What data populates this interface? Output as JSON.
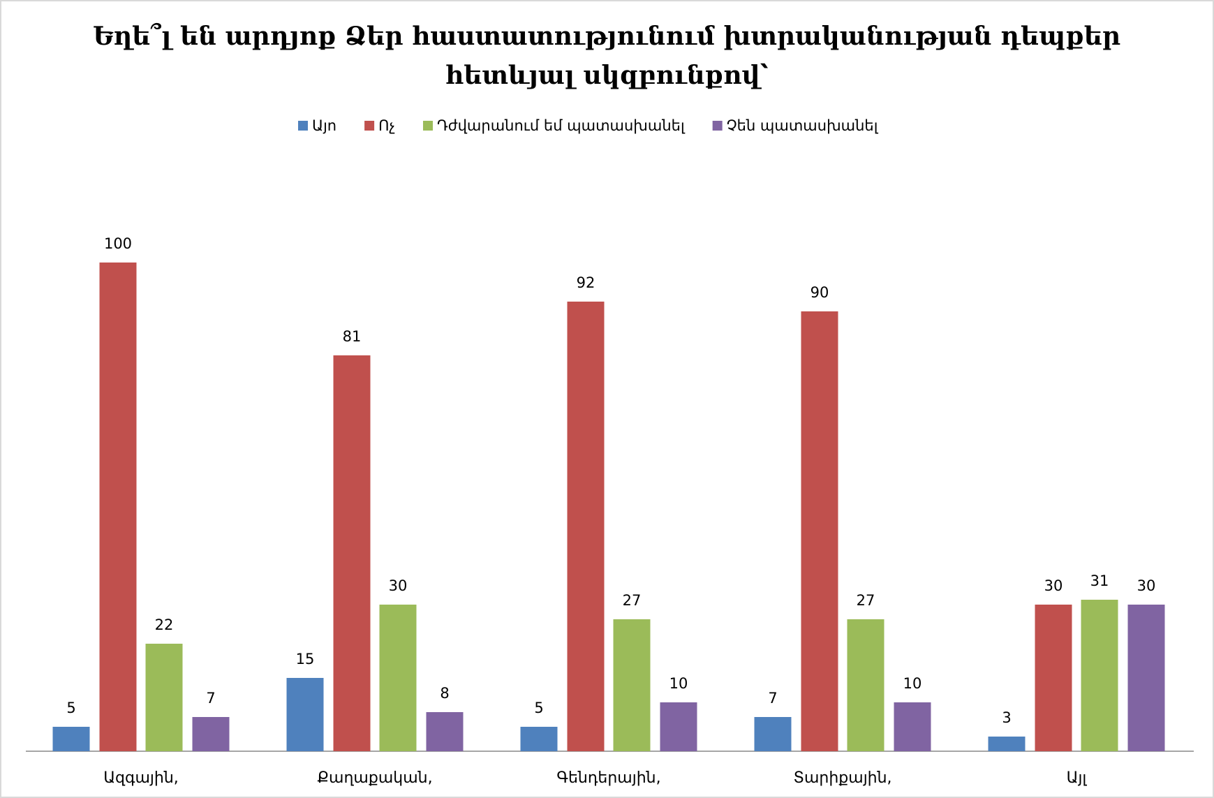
{
  "chart_data": {
    "type": "bar",
    "title": [
      "Եղե՞լ են արդյոք Ձեր հաստատությունում խտրականության դեպքեր",
      "հետևյալ սկզբունքով՝"
    ],
    "categories": [
      "Ազգային,",
      "Քաղաքական,",
      "Գենդերային,",
      "Տարիքային,",
      "Այլ"
    ],
    "series": [
      {
        "name": "Այո",
        "color": "#4f81bd",
        "values": [
          5,
          15,
          5,
          7,
          3
        ]
      },
      {
        "name": "Ոչ",
        "color": "#c0504d",
        "values": [
          100,
          81,
          92,
          90,
          30
        ]
      },
      {
        "name": "Դժվարանում եմ պատասխանել",
        "color": "#9bbb59",
        "values": [
          22,
          30,
          27,
          27,
          31
        ]
      },
      {
        "name": "Չեն պատասխանել",
        "color": "#8064a2",
        "values": [
          7,
          8,
          10,
          10,
          30
        ]
      }
    ],
    "legend": "top"
  }
}
